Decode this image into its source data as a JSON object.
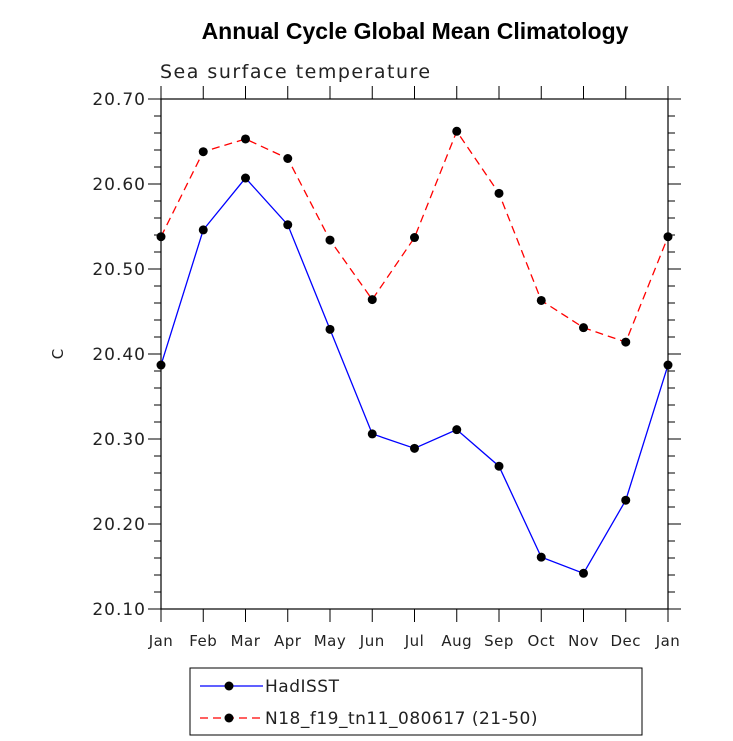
{
  "chart_data": {
    "type": "line",
    "title": "Annual Cycle Global Mean Climatology",
    "subtitle": "Sea surface temperature",
    "xlabel": "",
    "ylabel": "C",
    "categories": [
      "Jan",
      "Feb",
      "Mar",
      "Apr",
      "May",
      "Jun",
      "Jul",
      "Aug",
      "Sep",
      "Oct",
      "Nov",
      "Dec",
      "Jan"
    ],
    "ylim": [
      20.1,
      20.7
    ],
    "yticks": [
      "20.10",
      "20.20",
      "20.30",
      "20.40",
      "20.50",
      "20.60",
      "20.70"
    ],
    "series": [
      {
        "name": "HadISST",
        "color": "#0000ff",
        "dash": "solid",
        "values": [
          20.387,
          20.546,
          20.607,
          20.552,
          20.429,
          20.306,
          20.289,
          20.311,
          20.268,
          20.161,
          20.142,
          20.228,
          20.387
        ]
      },
      {
        "name": "N18_f19_tn11_080617 (21-50)",
        "color": "#ff0000",
        "dash": "dashed",
        "values": [
          20.538,
          20.638,
          20.653,
          20.63,
          20.534,
          20.464,
          20.537,
          20.662,
          20.589,
          20.463,
          20.431,
          20.414,
          20.538
        ]
      }
    ],
    "legend_position": "bottom-center",
    "grid": false
  }
}
